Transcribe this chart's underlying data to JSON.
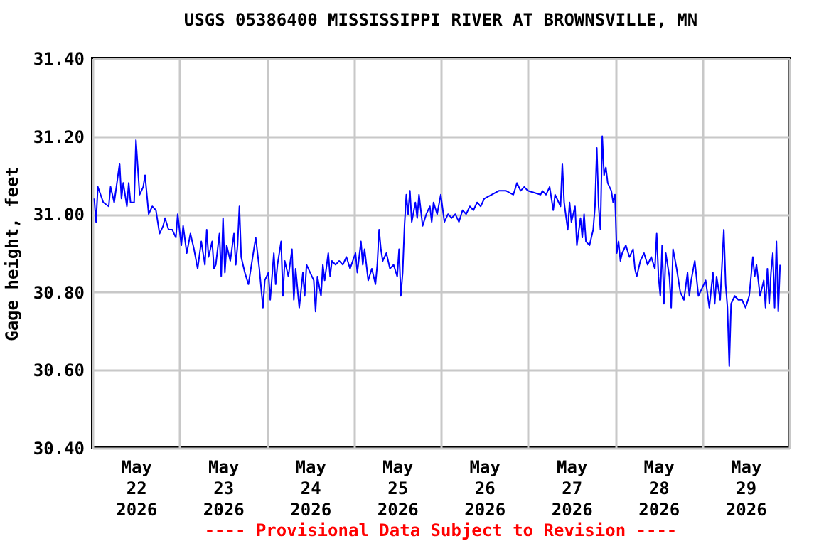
{
  "chart_data": {
    "type": "line",
    "title": "USGS 05386400 MISSISSIPPI RIVER AT BROWNSVILLE, MN",
    "ylabel": "Gage height, feet",
    "annotations": [
      "---- Provisional Data Subject to Revision ----"
    ],
    "grid": true,
    "legend": false,
    "marker": "none",
    "line_style": "solid",
    "xlim": [
      "2026-05-22",
      "2026-05-30"
    ],
    "xticks": [
      {
        "value": "2026-05-22",
        "label": null
      },
      {
        "value": "2026-05-22T12:00",
        "label": "May 22 2026"
      },
      {
        "value": "2026-05-23",
        "label": null
      },
      {
        "value": "2026-05-23T12:00",
        "label": "May 23 2026"
      },
      {
        "value": "2026-05-24",
        "label": null
      },
      {
        "value": "2026-05-24T12:00",
        "label": "May 24 2026"
      },
      {
        "value": "2026-05-25",
        "label": null
      },
      {
        "value": "2026-05-25T12:00",
        "label": "May 25 2026"
      },
      {
        "value": "2026-05-26",
        "label": null
      },
      {
        "value": "2026-05-26T12:00",
        "label": "May 26 2026"
      },
      {
        "value": "2026-05-27",
        "label": null
      },
      {
        "value": "2026-05-27T12:00",
        "label": "May 27 2026"
      },
      {
        "value": "2026-05-28",
        "label": null
      },
      {
        "value": "2026-05-28T12:00",
        "label": "May 28 2026"
      },
      {
        "value": "2026-05-29",
        "label": null
      },
      {
        "value": "2026-05-29T12:00",
        "label": "May 29 2026"
      },
      {
        "value": "2026-05-30",
        "label": null
      }
    ],
    "ylim": [
      30.4,
      31.4
    ],
    "yticks": [
      {
        "value": 30.4,
        "label": "30.40"
      },
      {
        "value": 30.6,
        "label": "30.60"
      },
      {
        "value": 30.8,
        "label": "30.80"
      },
      {
        "value": 31.0,
        "label": "31.00"
      },
      {
        "value": 31.2,
        "label": "31.20"
      },
      {
        "value": 31.4,
        "label": "31.40"
      }
    ],
    "series": [
      {
        "color": "#0000ff",
        "x": [
          "2026-05-22T00:30",
          "2026-05-22T01:00",
          "2026-05-22T01:30",
          "2026-05-22T03:00",
          "2026-05-22T04:30",
          "2026-05-22T05:00",
          "2026-05-22T06:00",
          "2026-05-22T07:30",
          "2026-05-22T08:00",
          "2026-05-22T08:30",
          "2026-05-22T09:30",
          "2026-05-22T10:00",
          "2026-05-22T10:30",
          "2026-05-22T11:30",
          "2026-05-22T12:00",
          "2026-05-22T12:30",
          "2026-05-22T13:00",
          "2026-05-22T14:00",
          "2026-05-22T14:30",
          "2026-05-22T15:30",
          "2026-05-22T16:30",
          "2026-05-22T17:30",
          "2026-05-22T18:00",
          "2026-05-22T18:30",
          "2026-05-22T19:30",
          "2026-05-22T20:00",
          "2026-05-22T21:00",
          "2026-05-22T22:00",
          "2026-05-22T23:00",
          "2026-05-22T23:30",
          "2026-05-23T00:30",
          "2026-05-23T01:00",
          "2026-05-23T02:00",
          "2026-05-23T03:00",
          "2026-05-23T04:00",
          "2026-05-23T05:00",
          "2026-05-23T06:00",
          "2026-05-23T07:00",
          "2026-05-23T07:30",
          "2026-05-23T08:00",
          "2026-05-23T09:00",
          "2026-05-23T09:30",
          "2026-05-23T10:00",
          "2026-05-23T11:00",
          "2026-05-23T11:30",
          "2026-05-23T12:00",
          "2026-05-23T12:30",
          "2026-05-23T13:00",
          "2026-05-23T14:00",
          "2026-05-23T15:00",
          "2026-05-23T15:30",
          "2026-05-23T16:00",
          "2026-05-23T16:30",
          "2026-05-23T17:00",
          "2026-05-23T18:00",
          "2026-05-23T19:00",
          "2026-05-23T20:00",
          "2026-05-23T21:00",
          "2026-05-23T22:00",
          "2026-05-23T23:00",
          "2026-05-23T23:30",
          "2026-05-24T00:30",
          "2026-05-24T01:00",
          "2026-05-24T02:00",
          "2026-05-24T02:30",
          "2026-05-24T03:00",
          "2026-05-24T04:00",
          "2026-05-24T04:30",
          "2026-05-24T05:00",
          "2026-05-24T06:00",
          "2026-05-24T07:00",
          "2026-05-24T07:30",
          "2026-05-24T08:00",
          "2026-05-24T09:00",
          "2026-05-24T10:00",
          "2026-05-24T10:30",
          "2026-05-24T11:00",
          "2026-05-24T13:00",
          "2026-05-24T13:30",
          "2026-05-24T14:00",
          "2026-05-24T15:00",
          "2026-05-24T15:30",
          "2026-05-24T16:00",
          "2026-05-24T17:00",
          "2026-05-24T17:30",
          "2026-05-24T18:00",
          "2026-05-24T19:00",
          "2026-05-24T20:00",
          "2026-05-24T21:00",
          "2026-05-24T22:00",
          "2026-05-24T23:00",
          "2026-05-25T00:30",
          "2026-05-25T01:00",
          "2026-05-25T02:00",
          "2026-05-25T02:30",
          "2026-05-25T03:00",
          "2026-05-25T04:00",
          "2026-05-25T05:00",
          "2026-05-25T06:00",
          "2026-05-25T06:30",
          "2026-05-25T07:00",
          "2026-05-25T07:30",
          "2026-05-25T08:00",
          "2026-05-25T09:00",
          "2026-05-25T10:00",
          "2026-05-25T11:00",
          "2026-05-25T12:00",
          "2026-05-25T12:30",
          "2026-05-25T13:00",
          "2026-05-25T13:30",
          "2026-05-25T14:00",
          "2026-05-25T14:30",
          "2026-05-25T15:00",
          "2026-05-25T15:30",
          "2026-05-25T16:00",
          "2026-05-25T17:00",
          "2026-05-25T17:30",
          "2026-05-25T18:00",
          "2026-05-25T19:00",
          "2026-05-25T20:00",
          "2026-05-25T21:00",
          "2026-05-25T21:30",
          "2026-05-25T22:00",
          "2026-05-25T23:00",
          "2026-05-26T00:00",
          "2026-05-26T01:00",
          "2026-05-26T02:00",
          "2026-05-26T03:00",
          "2026-05-26T04:00",
          "2026-05-26T05:00",
          "2026-05-26T06:00",
          "2026-05-26T07:00",
          "2026-05-26T08:00",
          "2026-05-26T09:00",
          "2026-05-26T10:00",
          "2026-05-26T11:00",
          "2026-05-26T12:00",
          "2026-05-26T14:00",
          "2026-05-26T16:00",
          "2026-05-26T18:00",
          "2026-05-26T20:00",
          "2026-05-26T21:00",
          "2026-05-26T22:00",
          "2026-05-26T23:00",
          "2026-05-27T00:00",
          "2026-05-27T03:30",
          "2026-05-27T04:00",
          "2026-05-27T05:00",
          "2026-05-27T06:00",
          "2026-05-27T07:00",
          "2026-05-27T07:30",
          "2026-05-27T08:00",
          "2026-05-27T09:00",
          "2026-05-27T09:30",
          "2026-05-27T10:00",
          "2026-05-27T11:00",
          "2026-05-27T11:30",
          "2026-05-27T12:00",
          "2026-05-27T13:00",
          "2026-05-27T13:30",
          "2026-05-27T14:30",
          "2026-05-27T15:00",
          "2026-05-27T15:30",
          "2026-05-27T16:00",
          "2026-05-27T17:00",
          "2026-05-27T18:00",
          "2026-05-27T18:30",
          "2026-05-27T19:00",
          "2026-05-27T19:30",
          "2026-05-27T20:00",
          "2026-05-27T20:30",
          "2026-05-27T21:00",
          "2026-05-27T21:30",
          "2026-05-27T22:00",
          "2026-05-27T23:00",
          "2026-05-27T23:30",
          "2026-05-28T00:00",
          "2026-05-28T00:30",
          "2026-05-28T01:00",
          "2026-05-28T01:30",
          "2026-05-28T02:00",
          "2026-05-28T03:00",
          "2026-05-28T04:00",
          "2026-05-28T05:00",
          "2026-05-28T05:30",
          "2026-05-28T06:00",
          "2026-05-28T07:00",
          "2026-05-28T08:00",
          "2026-05-28T09:00",
          "2026-05-28T10:00",
          "2026-05-28T11:00",
          "2026-05-28T11:30",
          "2026-05-28T12:00",
          "2026-05-28T12:30",
          "2026-05-28T13:00",
          "2026-05-28T13:30",
          "2026-05-28T14:00",
          "2026-05-28T15:00",
          "2026-05-28T15:30",
          "2026-05-28T16:00",
          "2026-05-28T17:00",
          "2026-05-28T18:00",
          "2026-05-28T19:00",
          "2026-05-28T20:00",
          "2026-05-28T20:30",
          "2026-05-28T21:00",
          "2026-05-28T22:00",
          "2026-05-28T23:00",
          "2026-05-29T00:00",
          "2026-05-29T01:00",
          "2026-05-29T02:00",
          "2026-05-29T03:00",
          "2026-05-29T03:30",
          "2026-05-29T04:00",
          "2026-05-29T05:00",
          "2026-05-29T06:00",
          "2026-05-29T06:30",
          "2026-05-29T07:00",
          "2026-05-29T07:30",
          "2026-05-29T08:00",
          "2026-05-29T09:00",
          "2026-05-29T10:00",
          "2026-05-29T11:00",
          "2026-05-29T12:00",
          "2026-05-29T13:00",
          "2026-05-29T14:00",
          "2026-05-29T14:30",
          "2026-05-29T15:00",
          "2026-05-29T16:00",
          "2026-05-29T17:00",
          "2026-05-29T17:30",
          "2026-05-29T18:00",
          "2026-05-29T18:30",
          "2026-05-29T19:00",
          "2026-05-29T19:30",
          "2026-05-29T20:00",
          "2026-05-29T20:30",
          "2026-05-29T21:00",
          "2026-05-29T21:30"
        ],
        "values": [
          31.04,
          30.98,
          31.07,
          31.03,
          31.02,
          31.07,
          31.03,
          31.13,
          31.04,
          31.08,
          31.02,
          31.08,
          31.03,
          31.03,
          31.19,
          31.12,
          31.05,
          31.07,
          31.1,
          31.0,
          31.02,
          31.01,
          30.98,
          30.95,
          30.97,
          30.99,
          30.96,
          30.96,
          30.94,
          31.0,
          30.92,
          30.97,
          30.9,
          30.95,
          30.91,
          30.86,
          30.93,
          30.87,
          30.96,
          30.89,
          30.93,
          30.86,
          30.87,
          30.95,
          30.84,
          30.99,
          30.85,
          30.92,
          30.88,
          30.95,
          30.87,
          30.92,
          31.02,
          30.89,
          30.85,
          30.82,
          30.88,
          30.94,
          30.86,
          30.76,
          30.83,
          30.85,
          30.78,
          30.9,
          30.82,
          30.87,
          30.93,
          30.79,
          30.88,
          30.84,
          30.91,
          30.78,
          30.86,
          30.76,
          30.85,
          30.79,
          30.87,
          30.83,
          30.75,
          30.84,
          30.79,
          30.87,
          30.83,
          30.9,
          30.84,
          30.88,
          30.87,
          30.88,
          30.87,
          30.89,
          30.86,
          30.9,
          30.85,
          30.93,
          30.87,
          30.91,
          30.83,
          30.86,
          30.82,
          30.87,
          30.96,
          30.91,
          30.88,
          30.9,
          30.86,
          30.87,
          30.84,
          30.91,
          30.79,
          30.85,
          30.97,
          31.05,
          31.0,
          31.06,
          30.98,
          31.03,
          30.99,
          31.05,
          30.97,
          31.0,
          31.02,
          30.98,
          31.03,
          31.0,
          31.05,
          30.98,
          31.0,
          30.99,
          31.0,
          30.98,
          31.01,
          31.0,
          31.02,
          31.01,
          31.03,
          31.02,
          31.04,
          31.05,
          31.06,
          31.06,
          31.05,
          31.08,
          31.06,
          31.07,
          31.06,
          31.05,
          31.06,
          31.05,
          31.07,
          31.01,
          31.05,
          31.04,
          31.02,
          31.13,
          31.03,
          30.96,
          31.03,
          30.98,
          31.02,
          30.92,
          30.99,
          30.94,
          31.0,
          30.93,
          30.92,
          30.96,
          31.02,
          31.17,
          31.02,
          30.96,
          31.2,
          31.1,
          31.12,
          31.08,
          31.06,
          31.03,
          31.05,
          30.9,
          30.93,
          30.88,
          30.9,
          30.92,
          30.89,
          30.91,
          30.86,
          30.84,
          30.88,
          30.9,
          30.87,
          30.89,
          30.86,
          30.95,
          30.84,
          30.79,
          30.92,
          30.77,
          30.9,
          30.84,
          30.76,
          30.91,
          30.86,
          30.8,
          30.78,
          30.85,
          30.79,
          30.83,
          30.88,
          30.79,
          30.81,
          30.83,
          30.76,
          30.85,
          30.77,
          30.84,
          30.78,
          30.96,
          30.82,
          30.76,
          30.61,
          30.77,
          30.79,
          30.78,
          30.78,
          30.76,
          30.79,
          30.89,
          30.84,
          30.87,
          30.79,
          30.83,
          30.76,
          30.86,
          30.77,
          30.85,
          30.9,
          30.76,
          30.93,
          30.75,
          30.87
        ]
      }
    ]
  }
}
